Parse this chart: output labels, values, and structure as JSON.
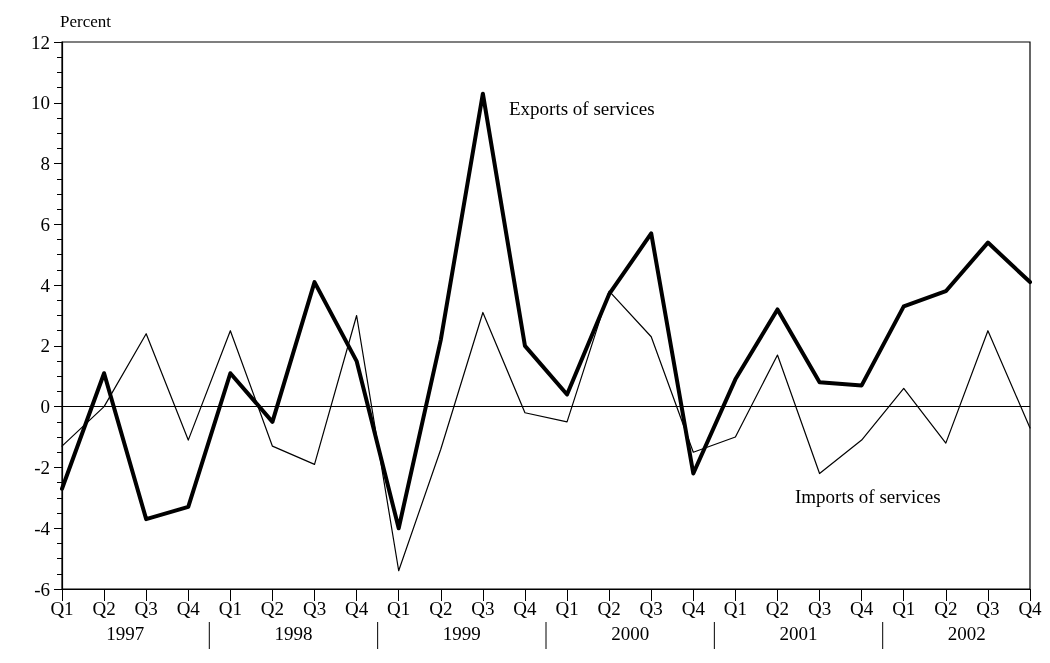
{
  "chart_data": {
    "type": "line",
    "ylabel": "Percent",
    "categories": [
      "Q1",
      "Q2",
      "Q3",
      "Q4",
      "Q1",
      "Q2",
      "Q3",
      "Q4",
      "Q1",
      "Q2",
      "Q3",
      "Q4",
      "Q1",
      "Q2",
      "Q3",
      "Q4",
      "Q1",
      "Q2",
      "Q3",
      "Q4",
      "Q1",
      "Q2",
      "Q3",
      "Q4"
    ],
    "annotations": [
      "1997",
      "1998",
      "1999",
      "2000",
      "2001",
      "2002"
    ],
    "series": [
      {
        "name": "Exports of services",
        "color": "#000000",
        "values": [
          -2.7,
          1.1,
          -3.7,
          -3.3,
          1.1,
          -0.5,
          4.1,
          1.5,
          -4.0,
          2.2,
          10.3,
          2.0,
          0.4,
          3.7,
          5.7,
          -2.2,
          0.9,
          3.2,
          0.8,
          0.7,
          3.3,
          3.8,
          5.4,
          4.1
        ]
      },
      {
        "name": "Imports of services",
        "color": "#000000",
        "values": [
          -1.3,
          0.0,
          2.4,
          -1.1,
          2.5,
          -1.3,
          -1.9,
          3.0,
          -5.4,
          -1.4,
          3.1,
          -0.2,
          -0.5,
          3.8,
          2.3,
          -1.5,
          -1.0,
          1.7,
          -2.2,
          -1.1,
          0.6,
          -1.2,
          2.5,
          -0.7
        ]
      }
    ],
    "ylim": [
      -6,
      12
    ],
    "yticks": [
      -6,
      -4,
      -2,
      0,
      2,
      4,
      6,
      8,
      10,
      12
    ],
    "ref_lines": [
      {
        "axis": "y",
        "value": 0,
        "label": null,
        "color": "#000000"
      }
    ],
    "grid": false,
    "legend": false,
    "marker": "none",
    "line_style": "solid"
  }
}
